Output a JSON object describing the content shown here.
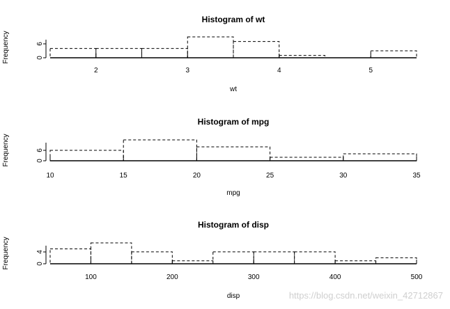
{
  "chart_data": [
    {
      "type": "bar",
      "title": "Histogram of wt",
      "xlabel": "wt",
      "ylabel": "Frequency",
      "bins": [
        [
          1.5,
          2.0
        ],
        [
          2.0,
          2.5
        ],
        [
          2.5,
          3.0
        ],
        [
          3.0,
          3.5
        ],
        [
          3.5,
          4.0
        ],
        [
          4.0,
          4.5
        ],
        [
          4.5,
          5.0
        ],
        [
          5.0,
          5.5
        ]
      ],
      "values": [
        4,
        4,
        4,
        9,
        7,
        1,
        0,
        3
      ],
      "xlim": [
        1.5,
        5.5
      ],
      "ylim": [
        0,
        9
      ],
      "xticks": [
        "2",
        "3",
        "4",
        "5"
      ],
      "yticks": [
        "0",
        "6"
      ],
      "grid": false
    },
    {
      "type": "bar",
      "title": "Histogram of mpg",
      "xlabel": "mpg",
      "ylabel": "Frequency",
      "bins": [
        [
          10,
          15
        ],
        [
          15,
          20
        ],
        [
          20,
          25
        ],
        [
          25,
          30
        ],
        [
          30,
          35
        ]
      ],
      "values": [
        6,
        12,
        8,
        2,
        4
      ],
      "xlim": [
        10,
        35
      ],
      "ylim": [
        0,
        12
      ],
      "xticks": [
        "10",
        "15",
        "20",
        "25",
        "30",
        "35"
      ],
      "yticks": [
        "0",
        "6"
      ],
      "grid": false
    },
    {
      "type": "bar",
      "title": "Histogram of disp",
      "xlabel": "disp",
      "ylabel": "Frequency",
      "bins": [
        [
          50,
          100
        ],
        [
          100,
          150
        ],
        [
          150,
          200
        ],
        [
          200,
          250
        ],
        [
          250,
          300
        ],
        [
          300,
          350
        ],
        [
          350,
          400
        ],
        [
          400,
          450
        ],
        [
          450,
          500
        ]
      ],
      "values": [
        5,
        7,
        4,
        1,
        4,
        4,
        4,
        1,
        2
      ],
      "xlim": [
        50,
        500
      ],
      "ylim": [
        0,
        7
      ],
      "xticks": [
        "100",
        "200",
        "300",
        "400",
        "500"
      ],
      "yticks": [
        "0",
        "4"
      ],
      "grid": false
    }
  ],
  "watermark": "https://blog.csdn.net/weixin_42712867"
}
